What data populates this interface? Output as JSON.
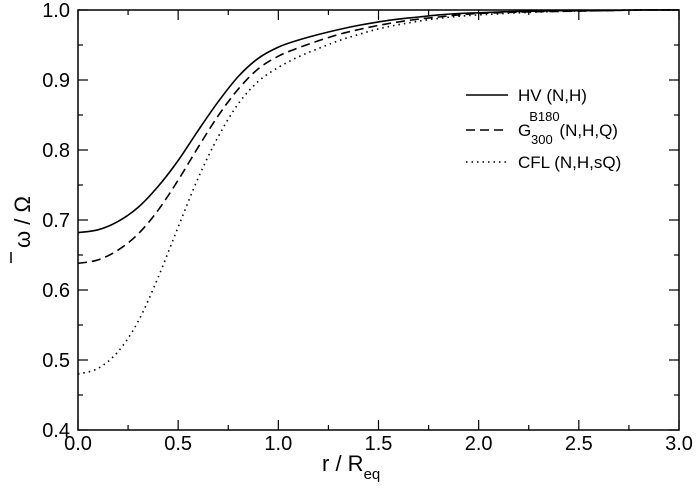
{
  "chart_data": {
    "type": "line",
    "title": "",
    "xlabel": {
      "main": "r / R",
      "sub": "eq"
    },
    "ylabel": "ω / Ω",
    "xlim": [
      0.0,
      3.0
    ],
    "ylim": [
      0.4,
      1.0
    ],
    "xticks": [
      "0.0",
      "0.5",
      "1.0",
      "1.5",
      "2.0",
      "2.5",
      "3.0"
    ],
    "yticks": [
      "0.4",
      "0.5",
      "0.6",
      "0.7",
      "0.8",
      "0.9",
      "1.0"
    ],
    "grid": false,
    "legend_position": "upper-right",
    "x": [
      0.0,
      0.1,
      0.2,
      0.3,
      0.4,
      0.5,
      0.6,
      0.7,
      0.8,
      0.9,
      1.0,
      1.1,
      1.2,
      1.3,
      1.4,
      1.5,
      1.6,
      1.7,
      1.8,
      1.9,
      2.0,
      2.2,
      2.4,
      2.6,
      2.8,
      3.0
    ],
    "series": [
      {
        "name": "HV (N,H)",
        "style": "solid",
        "color": "#000000",
        "values": [
          0.682,
          0.686,
          0.698,
          0.718,
          0.748,
          0.785,
          0.828,
          0.869,
          0.905,
          0.931,
          0.947,
          0.957,
          0.965,
          0.972,
          0.978,
          0.983,
          0.987,
          0.99,
          0.993,
          0.995,
          0.996,
          0.998,
          0.999,
          0.999,
          1.0,
          1.0
        ]
      },
      {
        "name": "G",
        "name_sup": "B180",
        "name_sub": "300",
        "name_suffix": " (N,H,Q)",
        "style": "dashed",
        "color": "#000000",
        "values": [
          0.638,
          0.643,
          0.657,
          0.68,
          0.714,
          0.757,
          0.804,
          0.849,
          0.887,
          0.916,
          0.934,
          0.946,
          0.956,
          0.965,
          0.972,
          0.978,
          0.983,
          0.987,
          0.99,
          0.993,
          0.995,
          0.997,
          0.998,
          0.999,
          1.0,
          1.0
        ]
      },
      {
        "name": "CFL (N,H,sQ)",
        "style": "dotted",
        "color": "#000000",
        "values": [
          0.48,
          0.488,
          0.512,
          0.555,
          0.618,
          0.69,
          0.76,
          0.819,
          0.866,
          0.898,
          0.918,
          0.933,
          0.945,
          0.956,
          0.965,
          0.973,
          0.979,
          0.984,
          0.988,
          0.991,
          0.993,
          0.996,
          0.998,
          0.999,
          1.0,
          1.0
        ]
      }
    ]
  }
}
